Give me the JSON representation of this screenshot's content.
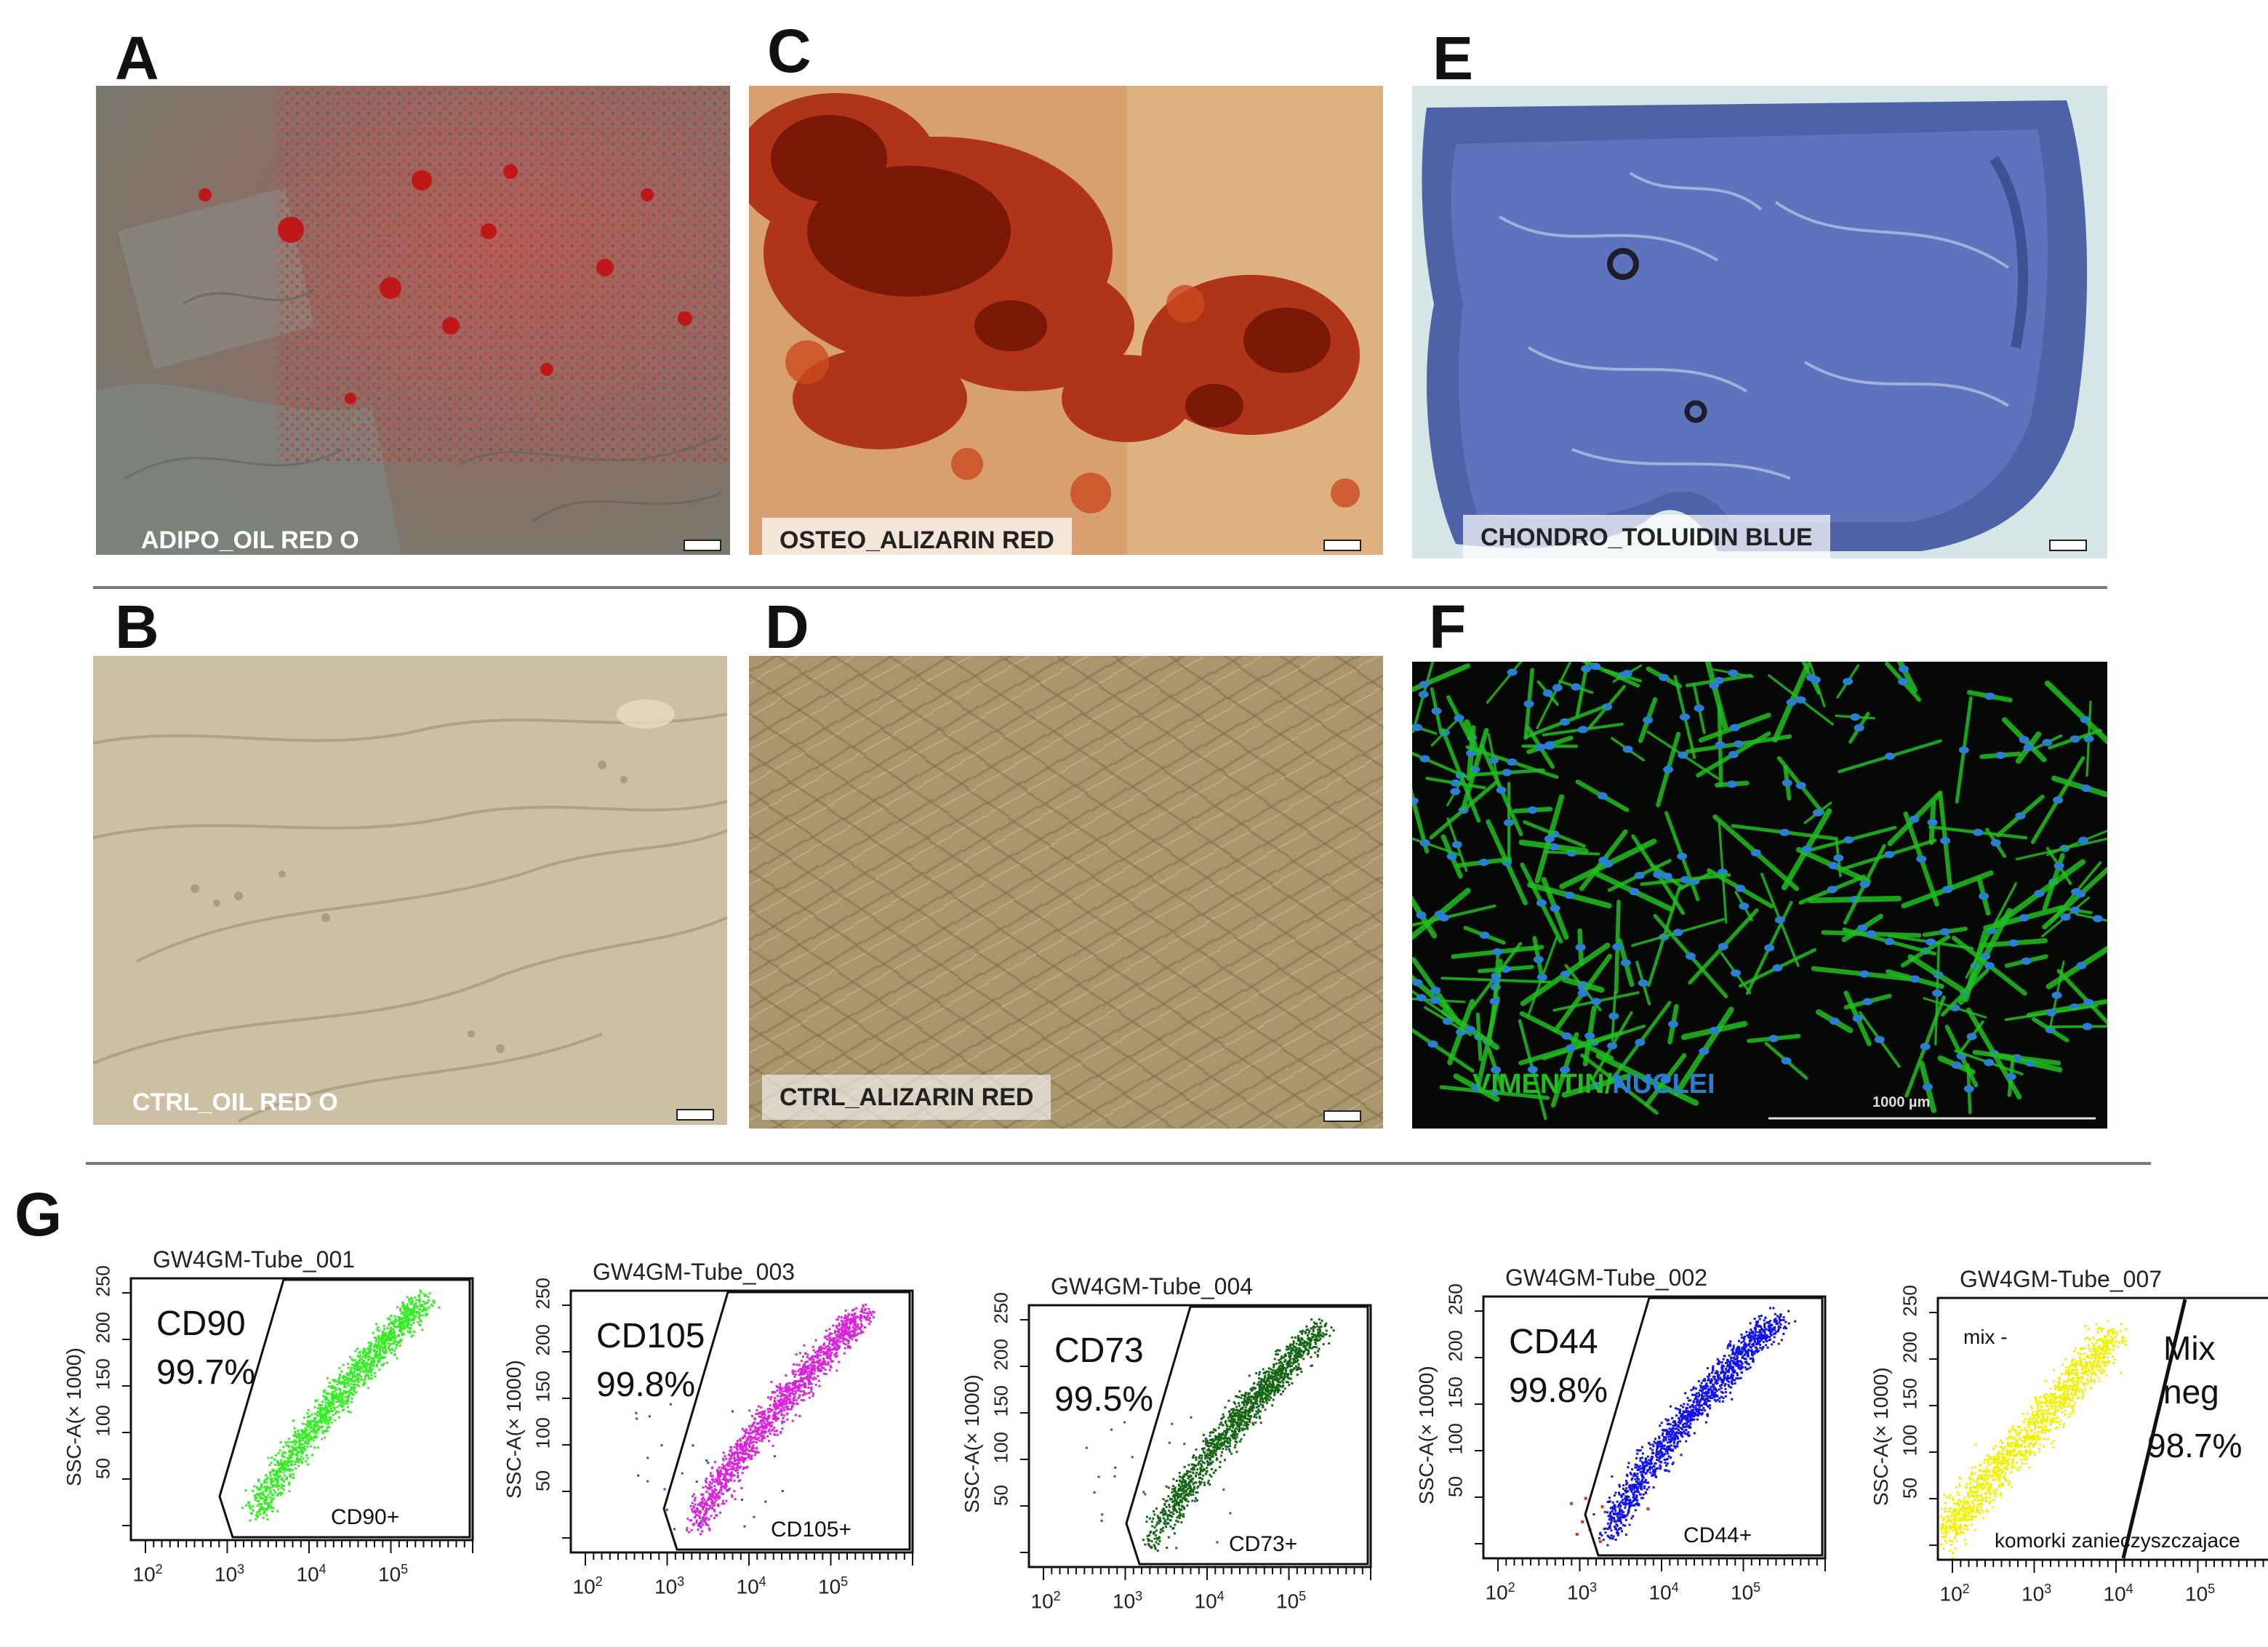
{
  "panels": {
    "A": {
      "letter": "A",
      "label": "ADIPO_OIL RED O"
    },
    "B": {
      "letter": "B",
      "label": "CTRL_OIL RED O"
    },
    "C": {
      "letter": "C",
      "label": "OSTEO_ALIZARIN RED"
    },
    "D": {
      "letter": "D",
      "label": "CTRL_ALIZARIN RED"
    },
    "E": {
      "letter": "E",
      "label": "CHONDRO_TOLUIDIN BLUE"
    },
    "F": {
      "letter": "F",
      "label_a": "VIMENTIN",
      "label_sep": "/",
      "label_b": "NUCLEI",
      "scale_label": "1000 µm"
    },
    "G": {
      "letter": "G"
    }
  },
  "colors": {
    "vimentin": "#1fbf1f",
    "nuclei": "#2a7fd4"
  },
  "flow": [
    {
      "tube": "GW4GM-Tube_001",
      "marker": "CD90",
      "percent": "99.7%",
      "gate": "CD90+",
      "color": "#33ee22"
    },
    {
      "tube": "GW4GM-Tube_003",
      "marker": "CD105",
      "percent": "99.8%",
      "gate": "CD105+",
      "color": "#dd22dd"
    },
    {
      "tube": "GW4GM-Tube_004",
      "marker": "CD73",
      "percent": "99.5%",
      "gate": "CD73+",
      "color": "#146614"
    },
    {
      "tube": "GW4GM-Tube_002",
      "marker": "CD44",
      "percent": "99.8%",
      "gate": "CD44+",
      "color": "#1111ee"
    },
    {
      "tube": "GW4GM-Tube_007",
      "marker": "Mix",
      "marker2": "neg",
      "percent": "98.7%",
      "gate": "komorki zanieczyszczajace",
      "minus_label": "mix -",
      "color": "#f2f200"
    }
  ],
  "axes": {
    "ylabel": "SSC-A(× 1000)",
    "yticks": [
      "250",
      "200",
      "150",
      "100",
      "50"
    ],
    "xticks": [
      "10",
      "10",
      "10",
      "10"
    ],
    "xexp": [
      "2",
      "3",
      "4",
      "5"
    ]
  }
}
